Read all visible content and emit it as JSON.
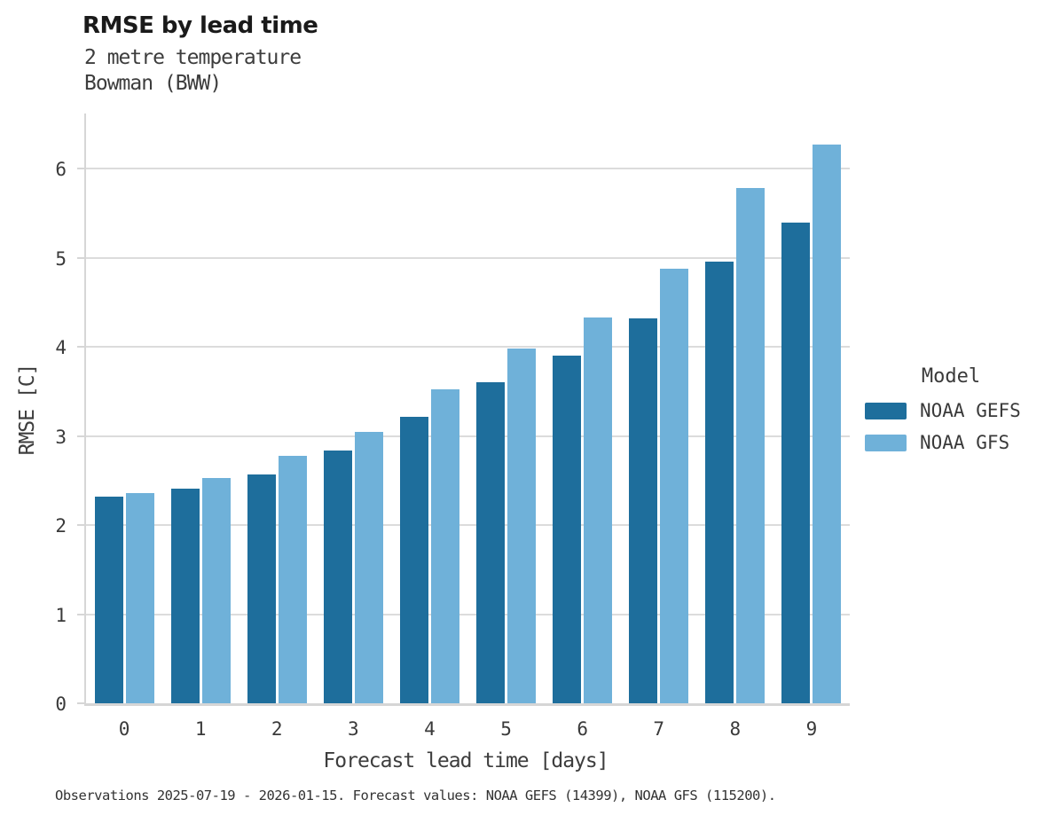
{
  "header": {
    "title": "RMSE by lead time",
    "subtitle_line1": "2 metre temperature",
    "subtitle_line2": "Bowman (BWW)"
  },
  "legend": {
    "title": "Model"
  },
  "footer": {
    "caption": "Observations 2025-07-19 - 2026-01-15. Forecast values: NOAA GEFS (14399), NOAA GFS (115200)."
  },
  "chart_data": {
    "type": "bar",
    "title": "RMSE by lead time",
    "subtitle": [
      "2 metre temperature",
      "Bowman (BWW)"
    ],
    "categories": [
      "0",
      "1",
      "2",
      "3",
      "4",
      "5",
      "6",
      "7",
      "8",
      "9"
    ],
    "series": [
      {
        "name": "NOAA GEFS",
        "color": "#1e6e9c",
        "values": [
          2.32,
          2.41,
          2.57,
          2.84,
          3.22,
          3.6,
          3.9,
          4.32,
          4.96,
          5.4
        ]
      },
      {
        "name": "NOAA GFS",
        "color": "#6fb1d9",
        "values": [
          2.36,
          2.53,
          2.78,
          3.05,
          3.52,
          3.98,
          4.33,
          4.88,
          5.78,
          6.27
        ]
      }
    ],
    "xlabel": "Forecast lead time [days]",
    "ylabel": "RMSE [C]",
    "ylim": [
      0,
      6.62
    ],
    "yticks": [
      0,
      1,
      2,
      3,
      4,
      5,
      6
    ],
    "grid": true,
    "grid_color": "#dcdcdc",
    "axis_color": "#d6d6d6",
    "legend_title": "Model",
    "legend_position": "right"
  }
}
